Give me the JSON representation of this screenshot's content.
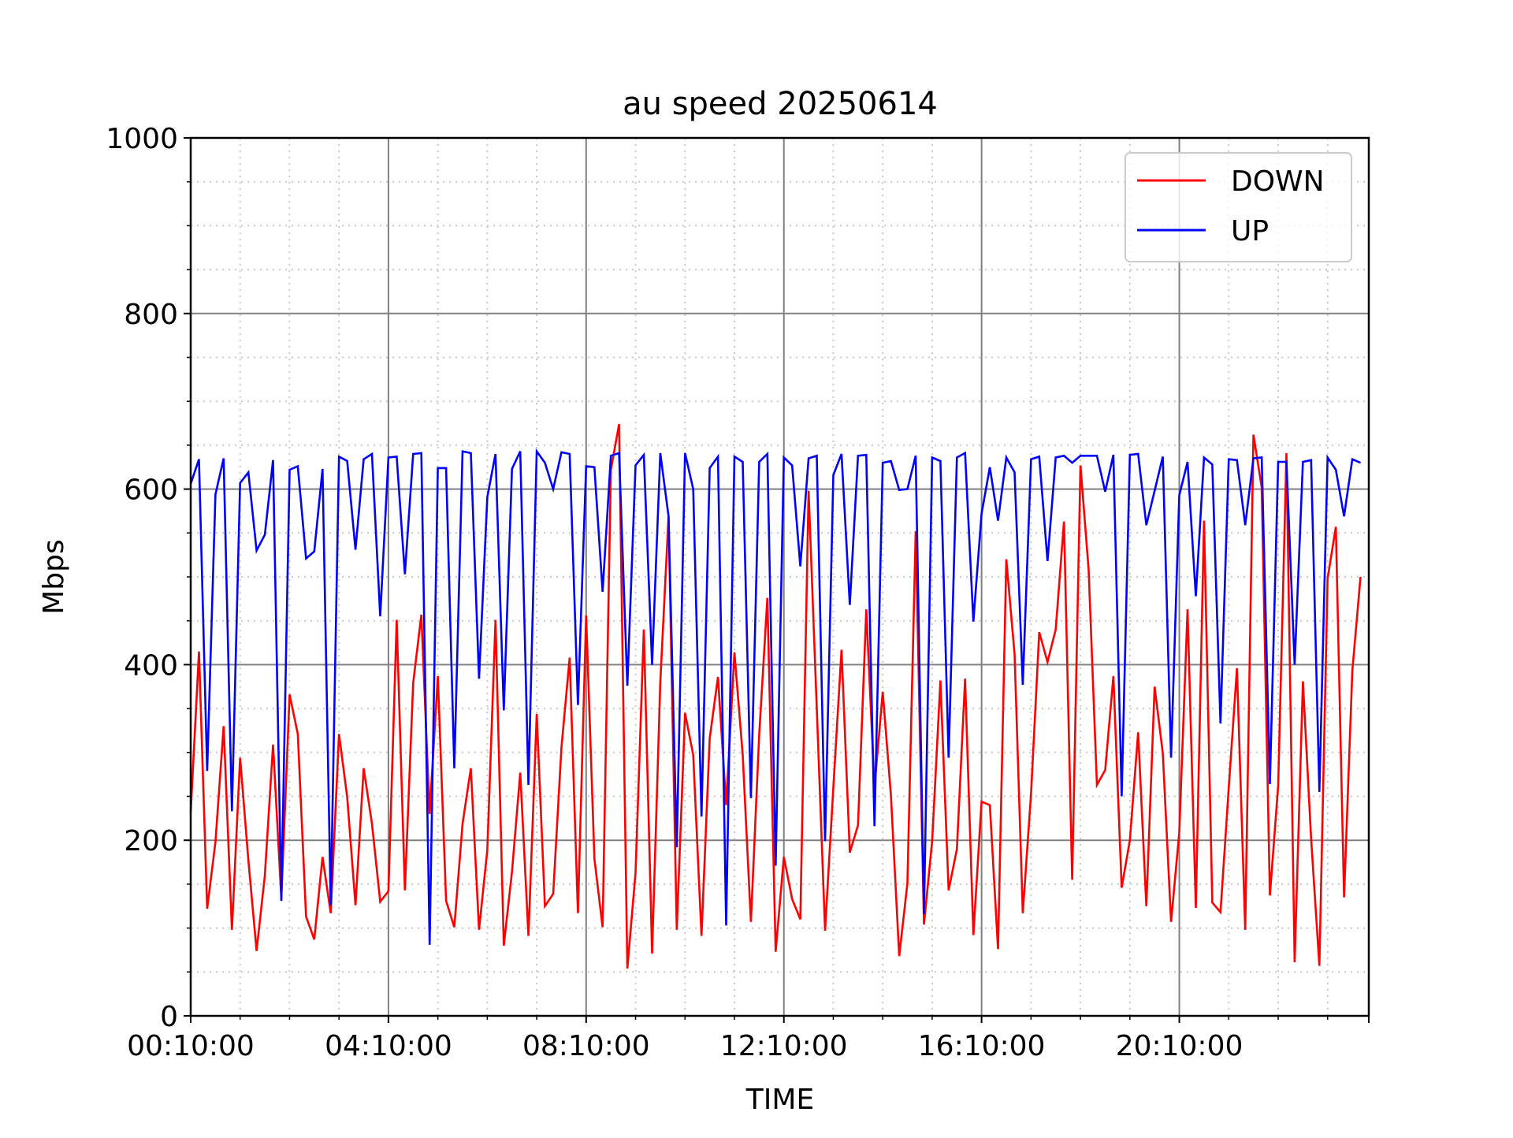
{
  "chart_data": {
    "type": "line",
    "title": "au speed 20250614",
    "xlabel": "TIME",
    "ylabel": "Mbps",
    "ylim": [
      0,
      1000
    ],
    "xlim": [
      "00:10",
      "24:00"
    ],
    "yticks": [
      0,
      200,
      400,
      600,
      800,
      1000
    ],
    "xticks": [
      "00:10:00",
      "04:10:00",
      "08:10:00",
      "12:10:00",
      "16:10:00",
      "20:10:00"
    ],
    "grid": {
      "major": true,
      "minor": true
    },
    "legend_position": "top-right",
    "x": [
      "00:10",
      "00:20",
      "00:30",
      "00:40",
      "00:50",
      "01:00",
      "01:10",
      "01:20",
      "01:30",
      "01:40",
      "01:50",
      "02:00",
      "02:10",
      "02:20",
      "02:30",
      "02:40",
      "02:50",
      "03:00",
      "03:10",
      "03:20",
      "03:30",
      "03:40",
      "03:50",
      "04:00",
      "04:10",
      "04:20",
      "04:30",
      "04:40",
      "04:50",
      "05:00",
      "05:10",
      "05:20",
      "05:30",
      "05:40",
      "05:50",
      "06:00",
      "06:10",
      "06:20",
      "06:30",
      "06:40",
      "06:50",
      "07:00",
      "07:10",
      "07:20",
      "07:30",
      "07:40",
      "07:50",
      "08:00",
      "08:10",
      "08:20",
      "08:30",
      "08:40",
      "08:50",
      "09:00",
      "09:10",
      "09:20",
      "09:30",
      "09:40",
      "09:50",
      "10:00",
      "10:10",
      "10:20",
      "10:30",
      "10:40",
      "10:50",
      "11:00",
      "11:10",
      "11:20",
      "11:30",
      "11:40",
      "11:50",
      "12:00",
      "12:10",
      "12:20",
      "12:30",
      "12:40",
      "12:50",
      "13:00",
      "13:10",
      "13:20",
      "13:30",
      "13:40",
      "13:50",
      "14:00",
      "14:10",
      "14:20",
      "14:30",
      "14:40",
      "14:50",
      "15:00",
      "15:10",
      "15:20",
      "15:30",
      "15:40",
      "15:50",
      "16:00",
      "16:10",
      "16:20",
      "16:30",
      "16:40",
      "16:50",
      "17:00",
      "17:10",
      "17:20",
      "17:30",
      "17:40",
      "17:50",
      "18:00",
      "18:10",
      "18:20",
      "18:30",
      "18:40",
      "18:50",
      "19:00",
      "19:10",
      "19:20",
      "19:30",
      "19:40",
      "19:50",
      "20:00",
      "20:10",
      "20:20",
      "20:30",
      "20:40",
      "20:50",
      "21:00",
      "21:10",
      "21:20",
      "21:30",
      "21:40",
      "21:50",
      "22:00",
      "22:10",
      "22:20",
      "22:30",
      "22:40",
      "22:50",
      "23:00",
      "23:10",
      "23:20",
      "23:30",
      "23:40",
      "23:50"
    ],
    "series": [
      {
        "name": "DOWN",
        "color": "#ff0000",
        "values": [
          232,
          415,
          122,
          198,
          330,
          98,
          294,
          177,
          74,
          160,
          309,
          134,
          366,
          321,
          113,
          87,
          181,
          117,
          321,
          249,
          126,
          282,
          219,
          130,
          142,
          451,
          143,
          379,
          457,
          230,
          387,
          131,
          101,
          219,
          282,
          98,
          189,
          451,
          80,
          164,
          277,
          91,
          344,
          125,
          139,
          306,
          408,
          117,
          456,
          179,
          101,
          622,
          674,
          54,
          163,
          440,
          71,
          380,
          569,
          98,
          345,
          297,
          91,
          316,
          386,
          240,
          414,
          297,
          107,
          320,
          476,
          73,
          181,
          133,
          110,
          598,
          350,
          97,
          260,
          417,
          186,
          217,
          463,
          260,
          369,
          251,
          68,
          151,
          552,
          104,
          199,
          382,
          143,
          190,
          384,
          92,
          244,
          240,
          76,
          520,
          412,
          117,
          253,
          437,
          403,
          440,
          563,
          155,
          627,
          508,
          263,
          280,
          387,
          146,
          200,
          323,
          125,
          375,
          299,
          107,
          209,
          463,
          123,
          564,
          129,
          118,
          260,
          396,
          98,
          662,
          602,
          137,
          262,
          641,
          61,
          381,
          202,
          57,
          498,
          557,
          135,
          393,
          500
        ]
      },
      {
        "name": "UP",
        "color": "#0000ff",
        "values": [
          606,
          634,
          279,
          594,
          635,
          233,
          607,
          619,
          530,
          548,
          633,
          131,
          622,
          626,
          521,
          529,
          623,
          126,
          637,
          632,
          531,
          634,
          640,
          455,
          636,
          637,
          503,
          640,
          641,
          81,
          624,
          624,
          282,
          643,
          641,
          384,
          591,
          640,
          348,
          623,
          643,
          263,
          643,
          630,
          600,
          642,
          640,
          354,
          626,
          625,
          483,
          638,
          641,
          376,
          627,
          639,
          400,
          641,
          569,
          192,
          641,
          600,
          227,
          624,
          637,
          103,
          637,
          631,
          248,
          631,
          640,
          171,
          636,
          627,
          512,
          635,
          638,
          199,
          616,
          640,
          468,
          638,
          639,
          216,
          630,
          632,
          599,
          600,
          638,
          116,
          636,
          632,
          294,
          636,
          641,
          449,
          572,
          625,
          564,
          636,
          619,
          377,
          634,
          637,
          518,
          636,
          638,
          630,
          638,
          638,
          638,
          597,
          639,
          250,
          639,
          640,
          559,
          598,
          637,
          294,
          593,
          631,
          478,
          636,
          628,
          333,
          634,
          633,
          559,
          635,
          636,
          264,
          631,
          631,
          400,
          631,
          633,
          255,
          636,
          622,
          569,
          634,
          630
        ]
      }
    ]
  }
}
